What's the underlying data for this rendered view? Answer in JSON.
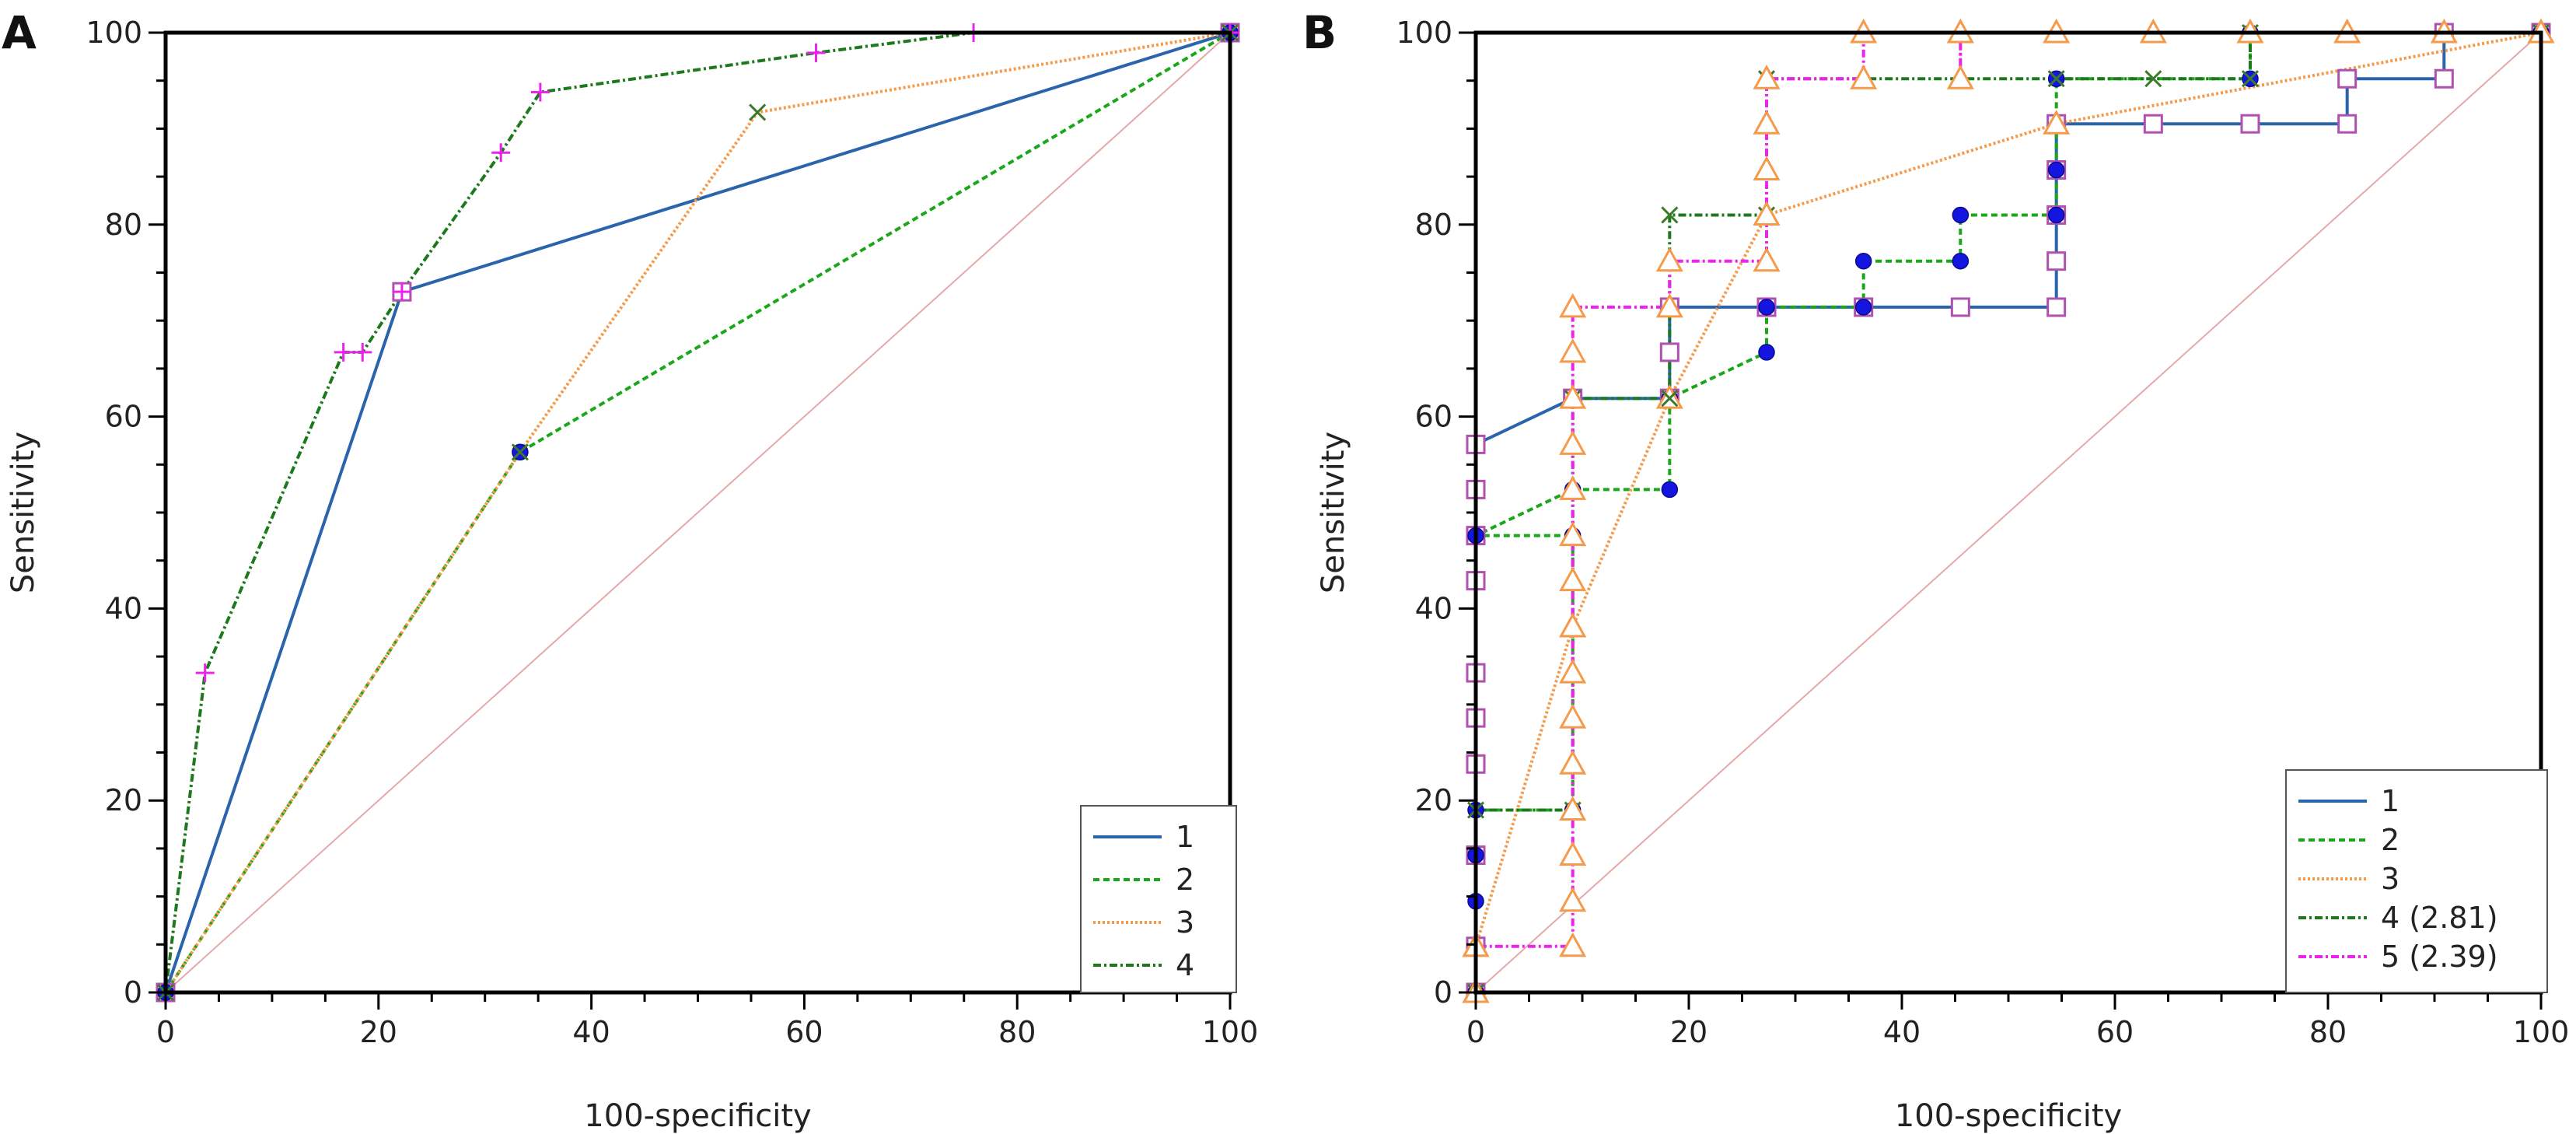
{
  "colors": {
    "s1": "#2a64ad",
    "s2": "#1aa81a",
    "s3": "#f59a4a",
    "s4": "#1c7a1c",
    "s5": "#ee22ee",
    "diagonal": "#e6a8a8",
    "marker_blue": "#1515e0",
    "marker_purple": "#b050b0"
  },
  "chart_data": [
    {
      "type": "line",
      "panel_label": "A",
      "xlabel": "100-specificity",
      "ylabel": "Sensitivity",
      "xlim": [
        0,
        100
      ],
      "ylim": [
        0,
        100
      ],
      "xticks": [
        0,
        20,
        40,
        60,
        80,
        100
      ],
      "yticks": [
        0,
        20,
        40,
        60,
        80,
        100
      ],
      "legend_position": "bottom-right",
      "reference_line": [
        [
          0,
          0
        ],
        [
          100,
          100
        ]
      ],
      "series": [
        {
          "name": "1",
          "color_key": "s1",
          "dash": "",
          "marker": "square",
          "points": [
            [
              0,
              0
            ],
            [
              22.2,
              73
            ],
            [
              100,
              100
            ]
          ]
        },
        {
          "name": "2",
          "color_key": "s2",
          "dash": "8,5",
          "marker": "circle",
          "points": [
            [
              0,
              0
            ],
            [
              33.3,
              56.3
            ],
            [
              100,
              100
            ]
          ]
        },
        {
          "name": "3",
          "color_key": "s3",
          "dash": "3,3",
          "marker": "x",
          "points": [
            [
              0,
              0
            ],
            [
              33.3,
              56.3
            ],
            [
              55.6,
              91.7
            ],
            [
              100,
              100
            ]
          ]
        },
        {
          "name": "4",
          "color_key": "s4",
          "dash": "10,4,3,4",
          "marker": "plus",
          "points": [
            [
              0,
              0
            ],
            [
              3.7,
              33.3
            ],
            [
              16.7,
              66.7
            ],
            [
              18.5,
              66.7
            ],
            [
              22.2,
              73
            ],
            [
              31.5,
              87.5
            ],
            [
              35.2,
              93.8
            ],
            [
              61.1,
              97.9
            ],
            [
              75.9,
              100
            ],
            [
              100,
              100
            ]
          ]
        }
      ]
    },
    {
      "type": "line",
      "panel_label": "B",
      "xlabel": "100-specificity",
      "ylabel": "Sensitivity",
      "xlim": [
        0,
        100
      ],
      "ylim": [
        0,
        100
      ],
      "xticks": [
        0,
        20,
        40,
        60,
        80,
        100
      ],
      "yticks": [
        0,
        20,
        40,
        60,
        80,
        100
      ],
      "legend_position": "bottom-right",
      "reference_line": [
        [
          0,
          0
        ],
        [
          100,
          100
        ]
      ],
      "series": [
        {
          "name": "1",
          "color_key": "s1",
          "dash": "",
          "marker": "square",
          "points": [
            [
              0,
              0
            ],
            [
              0,
              4.8
            ],
            [
              0,
              14.3
            ],
            [
              0,
              23.8
            ],
            [
              0,
              28.6
            ],
            [
              0,
              33.3
            ],
            [
              0,
              42.9
            ],
            [
              0,
              47.6
            ],
            [
              0,
              52.4
            ],
            [
              0,
              57.1
            ],
            [
              9.1,
              61.9
            ],
            [
              18.2,
              61.9
            ],
            [
              18.2,
              66.7
            ],
            [
              18.2,
              71.4
            ],
            [
              27.3,
              71.4
            ],
            [
              36.4,
              71.4
            ],
            [
              45.5,
              71.4
            ],
            [
              54.5,
              71.4
            ],
            [
              54.5,
              76.2
            ],
            [
              54.5,
              81
            ],
            [
              54.5,
              85.7
            ],
            [
              54.5,
              90.5
            ],
            [
              63.6,
              90.5
            ],
            [
              72.7,
              90.5
            ],
            [
              81.8,
              90.5
            ],
            [
              81.8,
              95.2
            ],
            [
              90.9,
              95.2
            ],
            [
              90.9,
              100
            ],
            [
              100,
              100
            ]
          ]
        },
        {
          "name": "2",
          "color_key": "s2",
          "dash": "8,5",
          "marker": "circle",
          "points": [
            [
              0,
              0
            ],
            [
              0,
              9.5
            ],
            [
              0,
              14.3
            ],
            [
              0,
              19
            ],
            [
              9.1,
              19
            ],
            [
              9.1,
              47.6
            ],
            [
              0,
              47.6
            ],
            [
              9.1,
              52.4
            ],
            [
              18.2,
              52.4
            ],
            [
              18.2,
              61.9
            ],
            [
              27.3,
              66.7
            ],
            [
              27.3,
              71.4
            ],
            [
              36.4,
              71.4
            ],
            [
              36.4,
              76.2
            ],
            [
              45.5,
              76.2
            ],
            [
              45.5,
              81
            ],
            [
              54.5,
              81
            ],
            [
              54.5,
              85.7
            ],
            [
              54.5,
              95.2
            ],
            [
              72.7,
              95.2
            ],
            [
              72.7,
              100
            ],
            [
              100,
              100
            ]
          ]
        },
        {
          "name": "3",
          "color_key": "s3",
          "dash": "3,3",
          "marker": "triangle",
          "points": [
            [
              0,
              0
            ],
            [
              0,
              4.8
            ],
            [
              9.1,
              38.1
            ],
            [
              18.2,
              61.9
            ],
            [
              27.3,
              81
            ],
            [
              54.5,
              90.5
            ],
            [
              100,
              100
            ]
          ]
        },
        {
          "name": "4 (2.81)",
          "color_key": "s4",
          "dash": "10,4,3,4",
          "marker": "x",
          "points": [
            [
              0,
              0
            ],
            [
              0,
              19
            ],
            [
              9.1,
              19
            ],
            [
              9.1,
              61.9
            ],
            [
              18.2,
              61.9
            ],
            [
              18.2,
              81
            ],
            [
              27.3,
              81
            ],
            [
              27.3,
              95.2
            ],
            [
              54.5,
              95.2
            ],
            [
              63.6,
              95.2
            ],
            [
              72.7,
              95.2
            ],
            [
              72.7,
              100
            ],
            [
              100,
              100
            ]
          ]
        },
        {
          "name": "5 (2.39)",
          "color_key": "s5",
          "dash": "10,4,3,4",
          "marker": "triangle",
          "points": [
            [
              0,
              0
            ],
            [
              0,
              4.8
            ],
            [
              9.1,
              4.8
            ],
            [
              9.1,
              9.5
            ],
            [
              9.1,
              14.3
            ],
            [
              9.1,
              19
            ],
            [
              9.1,
              23.8
            ],
            [
              9.1,
              28.6
            ],
            [
              9.1,
              33.3
            ],
            [
              9.1,
              38.1
            ],
            [
              9.1,
              42.9
            ],
            [
              9.1,
              47.6
            ],
            [
              9.1,
              52.4
            ],
            [
              9.1,
              57.1
            ],
            [
              9.1,
              61.9
            ],
            [
              9.1,
              66.7
            ],
            [
              9.1,
              71.4
            ],
            [
              18.2,
              71.4
            ],
            [
              18.2,
              76.2
            ],
            [
              27.3,
              76.2
            ],
            [
              27.3,
              81
            ],
            [
              27.3,
              85.7
            ],
            [
              27.3,
              90.5
            ],
            [
              27.3,
              95.2
            ],
            [
              36.4,
              95.2
            ],
            [
              36.4,
              100
            ],
            [
              45.5,
              100
            ],
            [
              45.5,
              95.2
            ],
            [
              45.5,
              100
            ],
            [
              54.5,
              100
            ],
            [
              63.6,
              100
            ],
            [
              72.7,
              100
            ],
            [
              81.8,
              100
            ],
            [
              90.9,
              100
            ],
            [
              100,
              100
            ]
          ]
        }
      ]
    }
  ]
}
